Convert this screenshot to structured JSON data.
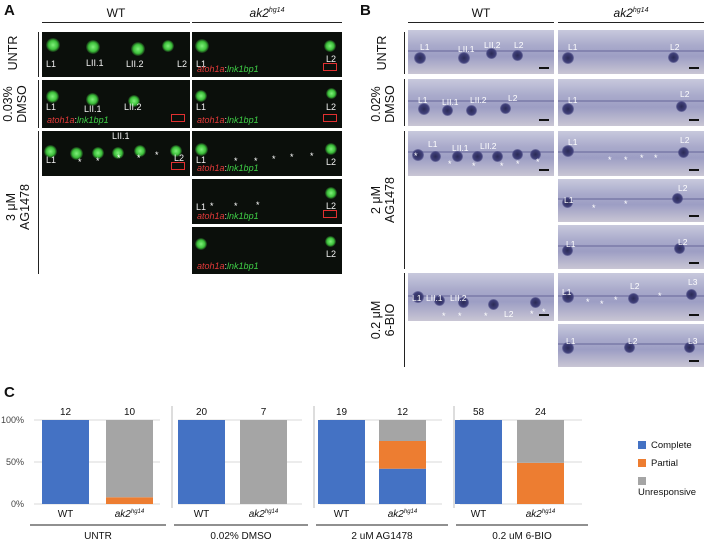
{
  "panelA": {
    "letter": "A",
    "col_wt": "WT",
    "col_mut": "ak2",
    "col_mut_sup": "hg14",
    "rows": [
      {
        "label": "UNTR"
      },
      {
        "label": "0.03%\nDMSO"
      },
      {
        "label": "3 μM\nAG1478"
      }
    ],
    "marker_red": "atoh1a",
    "marker_sep": ":",
    "marker_green": "lnk1bp1",
    "labels": {
      "L1": "L1",
      "LII1": "LII.1",
      "LII2": "LII.2",
      "L2": "L2",
      "star": "*"
    }
  },
  "panelB": {
    "letter": "B",
    "col_wt": "WT",
    "col_mut": "ak2",
    "col_mut_sup": "hg14",
    "rows": [
      {
        "label": "UNTR"
      },
      {
        "label": "0.02%\nDMSO"
      },
      {
        "label": "2 μM\nAG1478"
      },
      {
        "label": "0.2 μM\n6-BIO"
      }
    ],
    "labels": {
      "L1": "L1",
      "LII1": "LII.1",
      "LII2": "LII.2",
      "L2": "L2",
      "L3": "L3",
      "star": "*"
    }
  },
  "panelC": {
    "letter": "C",
    "chart_data": {
      "type": "bar",
      "stacked": true,
      "groups": [
        "UNTR",
        "0.02% DMSO",
        "2 uM AG1478",
        "0.2 uM 6-BIO"
      ],
      "bar_labels": [
        "WT",
        "ak2",
        "WT",
        "ak2",
        "WT",
        "ak2",
        "WT",
        "ak2"
      ],
      "bar_label_sup": [
        "",
        "hg14",
        "",
        "hg14",
        "",
        "hg14",
        "",
        "hg14"
      ],
      "n_values": [
        "12",
        "10",
        "20",
        "7",
        "19",
        "12",
        "58",
        "24"
      ],
      "yticks": [
        "0%",
        "50%",
        "100%"
      ],
      "ylim": [
        0,
        100
      ],
      "series": [
        {
          "name": "Complete",
          "color": "#4472c4",
          "values": [
            100,
            0,
            100,
            0,
            100,
            42,
            100,
            0
          ]
        },
        {
          "name": "Partial",
          "color": "#ed7d31",
          "values": [
            0,
            8,
            0,
            0,
            0,
            33,
            0,
            49
          ]
        },
        {
          "name": "Unresponsive",
          "color": "#a5a5a5",
          "values": [
            0,
            92,
            0,
            100,
            0,
            25,
            0,
            51
          ]
        }
      ],
      "grid": true,
      "legend_position": "right"
    }
  }
}
